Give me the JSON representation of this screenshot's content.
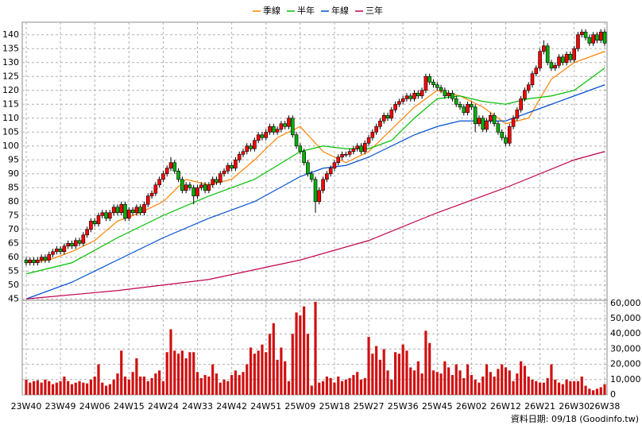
{
  "chart_data": {
    "type": "candlestick",
    "categories": [
      "23W40",
      null,
      null,
      null,
      null,
      null,
      null,
      null,
      null,
      "23W49",
      null,
      null,
      null,
      null,
      null,
      null,
      null,
      null,
      "24W06",
      null,
      null,
      null,
      null,
      null,
      null,
      null,
      null,
      "24W15",
      null,
      null,
      null,
      null,
      null,
      null,
      null,
      null,
      "24W24",
      null,
      null,
      null,
      null,
      null,
      null,
      null,
      null,
      "24W33",
      null,
      null,
      null,
      null,
      null,
      null,
      null,
      null,
      "24W42",
      null,
      null,
      null,
      null,
      null,
      null,
      null,
      null,
      "24W51",
      null,
      null,
      null,
      null,
      null,
      null,
      null,
      null,
      "25W09",
      null,
      null,
      null,
      null,
      null,
      null,
      null,
      null,
      "25W18",
      null,
      null,
      null,
      null,
      null,
      null,
      null,
      null,
      "25W27",
      null,
      null,
      null,
      null,
      null,
      null,
      null,
      null,
      "25W36",
      null,
      null,
      null,
      null,
      null,
      null,
      null,
      null,
      "25W45",
      null,
      null,
      null,
      null,
      null,
      null,
      null,
      null,
      "26W02",
      null,
      null,
      null,
      null,
      null,
      null,
      null,
      null,
      "26W12",
      null,
      null,
      null,
      null,
      null,
      null,
      null,
      null,
      "26W21",
      null,
      null,
      null,
      null,
      null,
      null,
      null,
      null,
      "26W30",
      null,
      null,
      null,
      null,
      null,
      null,
      null,
      "26W38"
    ],
    "ohlc": [
      [
        59,
        60,
        57,
        58
      ],
      [
        58,
        60,
        57,
        59
      ],
      [
        59,
        60,
        57,
        58
      ],
      [
        58,
        60,
        57,
        59
      ],
      [
        59,
        61,
        58,
        60
      ],
      [
        60,
        61,
        58,
        59
      ],
      [
        59,
        62,
        58,
        61
      ],
      [
        61,
        63,
        60,
        62
      ],
      [
        62,
        64,
        61,
        63
      ],
      [
        63,
        64,
        61,
        62
      ],
      [
        62,
        65,
        61,
        64
      ],
      [
        64,
        66,
        63,
        65
      ],
      [
        65,
        66,
        63,
        64
      ],
      [
        64,
        67,
        63,
        66
      ],
      [
        66,
        67,
        64,
        65
      ],
      [
        65,
        69,
        64,
        68
      ],
      [
        68,
        71,
        67,
        70
      ],
      [
        70,
        74,
        69,
        73
      ],
      [
        73,
        74,
        71,
        72
      ],
      [
        72,
        76,
        71,
        75
      ],
      [
        75,
        77,
        74,
        76
      ],
      [
        76,
        77,
        73,
        74
      ],
      [
        74,
        77,
        73,
        76
      ],
      [
        76,
        79,
        75,
        78
      ],
      [
        78,
        79,
        75,
        76
      ],
      [
        76,
        80,
        75,
        79
      ],
      [
        79,
        80,
        73,
        74
      ],
      [
        74,
        78,
        73,
        77
      ],
      [
        77,
        78,
        75,
        76
      ],
      [
        76,
        79,
        75,
        78
      ],
      [
        78,
        79,
        75,
        76
      ],
      [
        76,
        80,
        75,
        79
      ],
      [
        79,
        83,
        78,
        82
      ],
      [
        82,
        84,
        81,
        83
      ],
      [
        83,
        87,
        82,
        86
      ],
      [
        86,
        89,
        85,
        88
      ],
      [
        88,
        91,
        87,
        90
      ],
      [
        90,
        93,
        89,
        92
      ],
      [
        92,
        96,
        91,
        94
      ],
      [
        94,
        95,
        90,
        91
      ],
      [
        91,
        92,
        87,
        88
      ],
      [
        88,
        89,
        83,
        84
      ],
      [
        84,
        87,
        83,
        86
      ],
      [
        86,
        87,
        84,
        85
      ],
      [
        85,
        86,
        79,
        82
      ],
      [
        82,
        86,
        81,
        85
      ],
      [
        85,
        87,
        84,
        86
      ],
      [
        86,
        87,
        83,
        84
      ],
      [
        84,
        87,
        83,
        86
      ],
      [
        86,
        89,
        85,
        88
      ],
      [
        88,
        89,
        86,
        87
      ],
      [
        87,
        91,
        86,
        90
      ],
      [
        90,
        92,
        89,
        91
      ],
      [
        91,
        94,
        90,
        93
      ],
      [
        93,
        94,
        91,
        92
      ],
      [
        92,
        96,
        91,
        95
      ],
      [
        95,
        98,
        94,
        97
      ],
      [
        97,
        99,
        96,
        98
      ],
      [
        98,
        101,
        97,
        100
      ],
      [
        100,
        101,
        98,
        99
      ],
      [
        99,
        103,
        98,
        102
      ],
      [
        102,
        105,
        101,
        104
      ],
      [
        104,
        105,
        102,
        103
      ],
      [
        103,
        106,
        102,
        105
      ],
      [
        105,
        108,
        104,
        107
      ],
      [
        107,
        108,
        104,
        105
      ],
      [
        105,
        107,
        104,
        106
      ],
      [
        106,
        109,
        105,
        108
      ],
      [
        108,
        109,
        106,
        107
      ],
      [
        107,
        111,
        106,
        110
      ],
      [
        110,
        111,
        103,
        104
      ],
      [
        104,
        105,
        99,
        100
      ],
      [
        100,
        101,
        97,
        98
      ],
      [
        98,
        99,
        93,
        94
      ],
      [
        94,
        95,
        89,
        90
      ],
      [
        90,
        91,
        87,
        88
      ],
      [
        88,
        89,
        76,
        80
      ],
      [
        80,
        85,
        79,
        84
      ],
      [
        84,
        89,
        83,
        88
      ],
      [
        88,
        91,
        87,
        90
      ],
      [
        90,
        93,
        89,
        92
      ],
      [
        92,
        95,
        91,
        94
      ],
      [
        94,
        97,
        93,
        96
      ],
      [
        96,
        98,
        95,
        97
      ],
      [
        97,
        98,
        96,
        97
      ],
      [
        97,
        99,
        96,
        98
      ],
      [
        98,
        100,
        97,
        99
      ],
      [
        99,
        101,
        98,
        100
      ],
      [
        100,
        101,
        97,
        98
      ],
      [
        98,
        102,
        97,
        101
      ],
      [
        101,
        104,
        100,
        103
      ],
      [
        103,
        106,
        102,
        105
      ],
      [
        105,
        108,
        104,
        107
      ],
      [
        107,
        110,
        106,
        109
      ],
      [
        109,
        112,
        108,
        111
      ],
      [
        111,
        112,
        109,
        110
      ],
      [
        110,
        114,
        109,
        113
      ],
      [
        113,
        116,
        112,
        115
      ],
      [
        115,
        117,
        114,
        116
      ],
      [
        116,
        118,
        115,
        117
      ],
      [
        117,
        119,
        116,
        118
      ],
      [
        118,
        119,
        116,
        117
      ],
      [
        117,
        120,
        116,
        119
      ],
      [
        119,
        120,
        117,
        118
      ],
      [
        118,
        121,
        117,
        120
      ],
      [
        120,
        126,
        119,
        125
      ],
      [
        125,
        126,
        122,
        123
      ],
      [
        123,
        124,
        121,
        122
      ],
      [
        122,
        123,
        120,
        121
      ],
      [
        121,
        122,
        119,
        120
      ],
      [
        120,
        121,
        117,
        118
      ],
      [
        118,
        120,
        117,
        119
      ],
      [
        119,
        120,
        116,
        117
      ],
      [
        117,
        118,
        114,
        115
      ],
      [
        115,
        116,
        113,
        114
      ],
      [
        114,
        115,
        111,
        112
      ],
      [
        112,
        116,
        111,
        115
      ],
      [
        115,
        116,
        113,
        114
      ],
      [
        114,
        115,
        105,
        108
      ],
      [
        108,
        111,
        107,
        110
      ],
      [
        110,
        111,
        105,
        106
      ],
      [
        106,
        110,
        105,
        109
      ],
      [
        109,
        112,
        108,
        111
      ],
      [
        111,
        112,
        107,
        108
      ],
      [
        108,
        109,
        104,
        105
      ],
      [
        105,
        106,
        102,
        103
      ],
      [
        103,
        104,
        100,
        101
      ],
      [
        101,
        108,
        100,
        107
      ],
      [
        107,
        111,
        106,
        110
      ],
      [
        110,
        114,
        109,
        113
      ],
      [
        113,
        118,
        112,
        117
      ],
      [
        117,
        121,
        116,
        120
      ],
      [
        120,
        123,
        119,
        122
      ],
      [
        122,
        127,
        121,
        126
      ],
      [
        126,
        129,
        125,
        128
      ],
      [
        128,
        135,
        127,
        134
      ],
      [
        134,
        138,
        133,
        136
      ],
      [
        136,
        137,
        129,
        130
      ],
      [
        130,
        131,
        127,
        128
      ],
      [
        128,
        130,
        127,
        129
      ],
      [
        129,
        133,
        128,
        132
      ],
      [
        132,
        133,
        129,
        130
      ],
      [
        130,
        134,
        129,
        133
      ],
      [
        133,
        134,
        130,
        131
      ],
      [
        131,
        136,
        130,
        135
      ],
      [
        135,
        141,
        134,
        140
      ],
      [
        140,
        142,
        139,
        141
      ],
      [
        141,
        142,
        138,
        139
      ],
      [
        139,
        140,
        136,
        137
      ],
      [
        137,
        141,
        136,
        140
      ],
      [
        140,
        141,
        137,
        138
      ],
      [
        138,
        142,
        137,
        141
      ],
      [
        141,
        142,
        136,
        137
      ]
    ],
    "up_color": "#ff0000",
    "down_color": "#00b000",
    "ylim": [
      44.5,
      144.5
    ],
    "yticks": [
      45,
      50,
      55,
      60,
      65,
      70,
      75,
      80,
      85,
      90,
      95,
      100,
      105,
      110,
      115,
      120,
      125,
      130,
      135,
      140
    ],
    "grid": true,
    "ma_lines": [
      {
        "name": "季線",
        "color": "#ff8000",
        "x": [
          0,
          6,
          12,
          18,
          24,
          30,
          36,
          42,
          48,
          54,
          60,
          66,
          72,
          78,
          84,
          90,
          96,
          102,
          108,
          114,
          120,
          126,
          132,
          138,
          144,
          152
        ],
        "values": [
          58,
          59,
          62,
          66,
          73,
          76,
          80,
          88,
          86,
          88,
          95,
          103,
          107,
          98,
          94,
          98,
          106,
          114,
          120,
          118,
          114,
          108,
          110,
          124,
          130,
          134
        ]
      },
      {
        "name": "半年",
        "color": "#00c000",
        "x": [
          0,
          12,
          24,
          36,
          48,
          60,
          72,
          78,
          84,
          90,
          96,
          102,
          108,
          114,
          120,
          126,
          132,
          138,
          144,
          152
        ],
        "values": [
          54,
          58,
          67,
          75,
          82,
          88,
          98,
          100,
          99,
          99,
          102,
          110,
          117,
          118,
          116,
          115,
          117,
          118,
          120,
          128
        ]
      },
      {
        "name": "年線",
        "color": "#0050d0",
        "x": [
          0,
          12,
          24,
          36,
          48,
          60,
          72,
          78,
          84,
          90,
          96,
          102,
          108,
          114,
          120,
          126,
          132,
          138,
          144,
          152
        ],
        "values": [
          45,
          51,
          59,
          67,
          74,
          80,
          89,
          92,
          93,
          96,
          100,
          104,
          107,
          109,
          109,
          109,
          112,
          115,
          118,
          122
        ]
      },
      {
        "name": "三年",
        "color": "#c00050",
        "x": [
          0,
          24,
          48,
          72,
          90,
          108,
          126,
          144,
          152
        ],
        "values": [
          45,
          48,
          52,
          59,
          66,
          76,
          85,
          95,
          98
        ]
      }
    ],
    "volume": {
      "color": "#d01010",
      "ylim": [
        0,
        62000
      ],
      "yticks": [
        0,
        {
          "value": 10000,
          "label": "10,000"
        },
        {
          "value": 20000,
          "label": "20,000"
        },
        {
          "value": 30000,
          "label": "30,000"
        },
        {
          "value": 40000,
          "label": "40,000"
        },
        {
          "value": 50000,
          "label": "50,000"
        },
        {
          "value": 60000,
          "label": "60,000"
        }
      ],
      "values": [
        10000,
        8000,
        9000,
        9500,
        8000,
        10000,
        9000,
        7000,
        8000,
        9000,
        12000,
        9000,
        7000,
        8000,
        9000,
        8000,
        7500,
        10000,
        12000,
        20000,
        8000,
        6000,
        7000,
        10000,
        14000,
        29000,
        12000,
        10000,
        15000,
        24000,
        12000,
        12000,
        9000,
        11000,
        14000,
        16000,
        9000,
        28000,
        43000,
        29000,
        27000,
        29000,
        24000,
        28000,
        28000,
        15000,
        11000,
        13000,
        12000,
        20000,
        14000,
        8000,
        10000,
        9000,
        13000,
        16000,
        13000,
        15000,
        20000,
        31000,
        27000,
        29000,
        33000,
        28000,
        40000,
        47000,
        23000,
        31000,
        22000,
        9000,
        40000,
        54000,
        52000,
        58000,
        40000,
        6000,
        61000,
        8000,
        9000,
        12000,
        11000,
        8000,
        12000,
        9000,
        10000,
        11000,
        13000,
        15000,
        10000,
        11000,
        38000,
        27000,
        32000,
        23000,
        30000,
        16000,
        10000,
        28000,
        27000,
        33000,
        29000,
        18000,
        16000,
        22000,
        14000,
        42000,
        34000,
        16000,
        15000,
        14000,
        22000,
        18000,
        13000,
        20000,
        16000,
        11000,
        20000,
        13000,
        10000,
        8000,
        12000,
        20000,
        15000,
        12000,
        17000,
        20000,
        18000,
        16000,
        9000,
        14000,
        22000,
        19000,
        12000,
        10000,
        9000,
        8000,
        8000,
        11000,
        20000,
        10000,
        8000,
        7000,
        10000,
        9000,
        9000,
        9000,
        12000,
        6000,
        4000,
        3000,
        4000,
        5000,
        7000
      ]
    },
    "footer": "資料日期: 09/18 (Goodinfo.tw)"
  }
}
